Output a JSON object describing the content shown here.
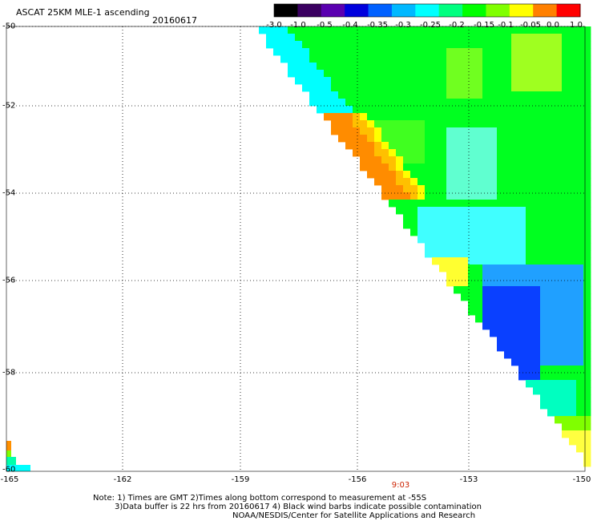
{
  "header": {
    "title": "ASCAT 25KM MLE-1 ascending",
    "date": "20160617"
  },
  "colorbar": {
    "tick_labels": [
      "-3.0",
      "-1.0",
      "-0.5",
      "-0.4",
      "-0.35",
      "-0.3",
      "-0.25",
      "-0.2",
      "-0.15",
      "-0.1",
      "-0.05",
      "0.0",
      "1.0"
    ],
    "colors": [
      "#000000",
      "#3a0060",
      "#5a00b0",
      "#0000dd",
      "#0060ff",
      "#00b8ff",
      "#00ffff",
      "#00ff80",
      "#00ff00",
      "#80ff00",
      "#ffff00",
      "#ff8000",
      "#ff0000"
    ]
  },
  "axes": {
    "lat_labels": [
      "-50",
      "-52",
      "-54",
      "-56",
      "-58",
      "-60"
    ],
    "lon_labels": [
      "-165",
      "-162",
      "-159",
      "-156",
      "-153",
      "-150"
    ]
  },
  "time_label": "9:03",
  "notes": {
    "line1": "Note: 1) Times are GMT 2)Times along bottom correspond to measurement at -55S",
    "line2": "3)Data buffer is 22 hrs from 20160617 4) Black wind barbs indicate possible contamination",
    "line3": "NOAA/NESDIS/Center for Satellite Applications and Research"
  }
}
